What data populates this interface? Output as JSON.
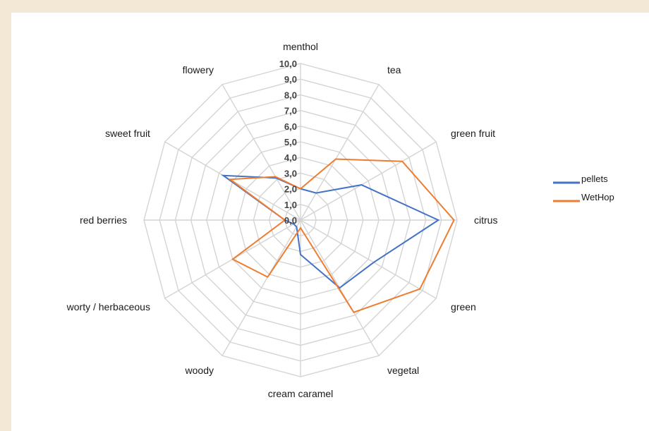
{
  "chart_data": {
    "type": "radar",
    "categories": [
      "menthol",
      "tea",
      "green fruit",
      "citrus",
      "green",
      "vegetal",
      "cream caramel",
      "woody",
      "worty / herbaceous",
      "red berries",
      "sweet fruit",
      "flowery"
    ],
    "rlim": [
      0,
      10
    ],
    "ticks": [
      "0,0",
      "1,0",
      "2,0",
      "3,0",
      "4,0",
      "5,0",
      "6,0",
      "7,0",
      "8,0",
      "9,0",
      "10,0"
    ],
    "series": [
      {
        "name": "pellets",
        "color": "#4472c4",
        "values": [
          2.0,
          2.0,
          4.5,
          8.8,
          5.4,
          5.0,
          2.2,
          0.5,
          0.5,
          1.0,
          5.7,
          3.1
        ]
      },
      {
        "name": "WetHop",
        "color": "#ed7d31",
        "values": [
          2.0,
          4.5,
          7.5,
          9.8,
          8.8,
          6.8,
          0.5,
          4.2,
          5.0,
          1.0,
          5.2,
          3.2
        ]
      }
    ],
    "grid": true,
    "legend": "right"
  }
}
